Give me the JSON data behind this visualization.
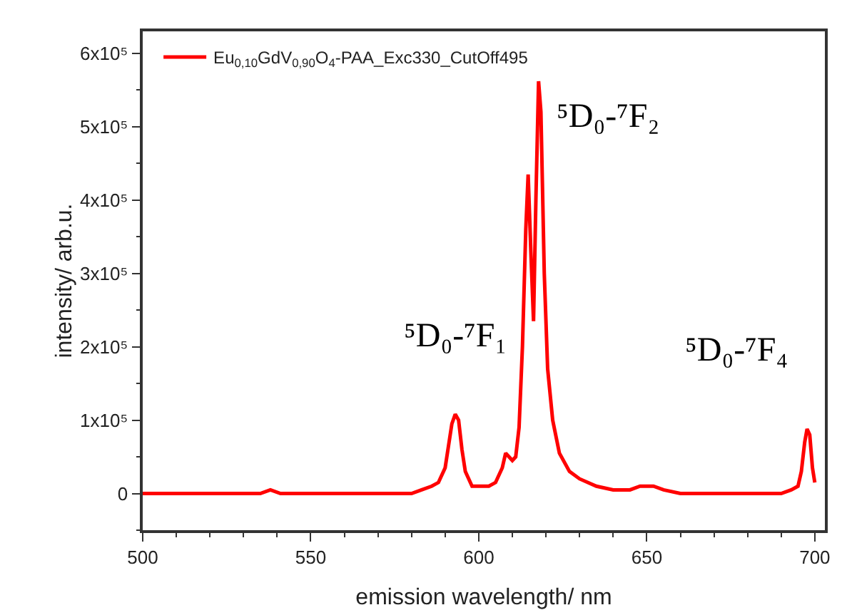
{
  "chart_data": {
    "type": "line",
    "xlabel": "emission wavelength/ nm",
    "ylabel": "intensity/ arb.u.",
    "xlim": [
      500,
      703
    ],
    "xticks": [
      500,
      550,
      600,
      650,
      700
    ],
    "ylim": [
      -50000,
      630000
    ],
    "yticks": [
      0,
      {
        "value": 100000,
        "label": "1x10⁵"
      },
      {
        "value": 200000,
        "label": "2x10⁵"
      },
      {
        "value": 300000,
        "label": "3x10⁵"
      },
      {
        "value": 400000,
        "label": "4x10⁵"
      },
      {
        "value": 500000,
        "label": "5x10⁵"
      },
      {
        "value": 600000,
        "label": "6x10⁵"
      }
    ],
    "grid": false,
    "legend": "top left",
    "line_style": "solid",
    "marker": "none",
    "annotations": [
      {
        "text": "⁵D₀-⁷F₁",
        "x": 593,
        "y": 108000
      },
      {
        "text": "⁵D₀-⁷F₂",
        "x": 618,
        "y": 562000
      },
      {
        "text": "⁵D₀-⁷F₄",
        "x": 697.7,
        "y": 88000
      }
    ],
    "series": [
      {
        "name": "Eu$_{0,10}$GdV$_{0,90}$O$_{4}$-PAA_Exc330_CutOff495",
        "color": "#ff0000",
        "x": [
          500,
          510,
          520,
          530,
          535,
          538,
          541,
          545,
          560,
          575,
          580,
          583,
          586,
          588,
          590,
          591,
          592,
          593,
          594,
          595,
          596,
          598,
          600,
          603,
          605,
          607,
          608,
          609,
          610,
          611,
          612,
          613,
          614,
          614.7,
          615.5,
          616.3,
          617,
          617.8,
          618.5,
          619.5,
          620.5,
          622,
          624,
          627,
          630,
          635,
          640,
          645,
          648,
          650,
          652,
          655,
          660,
          670,
          680,
          690,
          693,
          695,
          696,
          697,
          697.7,
          698.5,
          699.3,
          700
        ],
        "values": [
          0,
          0,
          0,
          0,
          0,
          5000,
          0,
          0,
          0,
          0,
          0,
          5000,
          10000,
          15000,
          35000,
          65000,
          95000,
          108000,
          100000,
          60000,
          30000,
          10000,
          10000,
          10000,
          15000,
          35000,
          55000,
          50000,
          45000,
          50000,
          90000,
          200000,
          360000,
          435000,
          330000,
          235000,
          400000,
          562000,
          520000,
          300000,
          170000,
          100000,
          55000,
          30000,
          20000,
          10000,
          5000,
          5000,
          10000,
          10000,
          10000,
          5000,
          0,
          0,
          0,
          0,
          5000,
          10000,
          30000,
          70000,
          88000,
          80000,
          35000,
          15000
        ]
      }
    ]
  }
}
